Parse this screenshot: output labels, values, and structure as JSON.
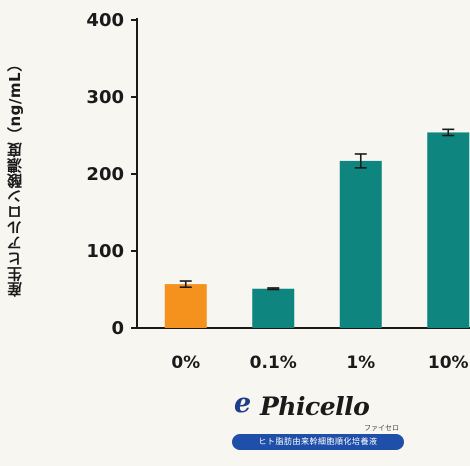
{
  "chart_data": {
    "type": "bar",
    "ylabel": "産生ヒアルロン酸濃度（ng/mL）",
    "xlabel": "",
    "categories": [
      "0%",
      "0.1%",
      "1%",
      "10%"
    ],
    "values": [
      57,
      51,
      217,
      254
    ],
    "errors": [
      4,
      1,
      9,
      4
    ],
    "ylim": [
      0,
      400
    ],
    "yticks": [
      0,
      100,
      200,
      300,
      400
    ],
    "grid": false,
    "colors": {
      "bars": [
        "#f5921e",
        "#0f8580",
        "#0f8580",
        "#0f8580"
      ],
      "axis": "#1a1a1a",
      "error": "#1a1a1a"
    }
  },
  "logo": {
    "mark": "e",
    "name": "Phicello",
    "kana": "ファイセロ",
    "tagline": "ヒト脂肪由来幹細胞順化培養液",
    "colors": {
      "mark": "#1e3e8a",
      "bar": "#1f4fa8"
    }
  }
}
